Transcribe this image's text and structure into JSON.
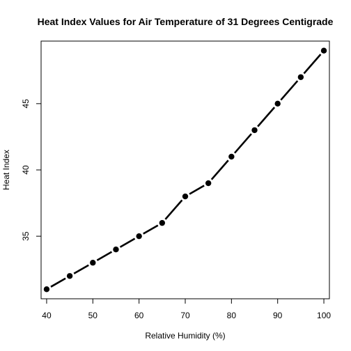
{
  "chart_data": {
    "type": "line",
    "title": "Heat Index Values for Air Temperature of 31 Degrees Centigrade",
    "xlabel": "Relative Humidity (%)",
    "ylabel": "Heat Index",
    "x": [
      40,
      45,
      50,
      55,
      60,
      65,
      70,
      75,
      80,
      85,
      90,
      95,
      100
    ],
    "y": [
      31,
      32,
      33,
      34,
      35,
      36,
      38,
      39,
      41,
      43,
      45,
      47,
      49
    ],
    "xlim": [
      38.8,
      101.2
    ],
    "ylim": [
      30.28,
      49.72
    ],
    "x_ticks": [
      40,
      50,
      60,
      70,
      80,
      90,
      100
    ],
    "y_ticks": [
      35,
      40,
      45
    ],
    "grid": false,
    "line_color": "#000000",
    "marker": "filled-circle"
  }
}
